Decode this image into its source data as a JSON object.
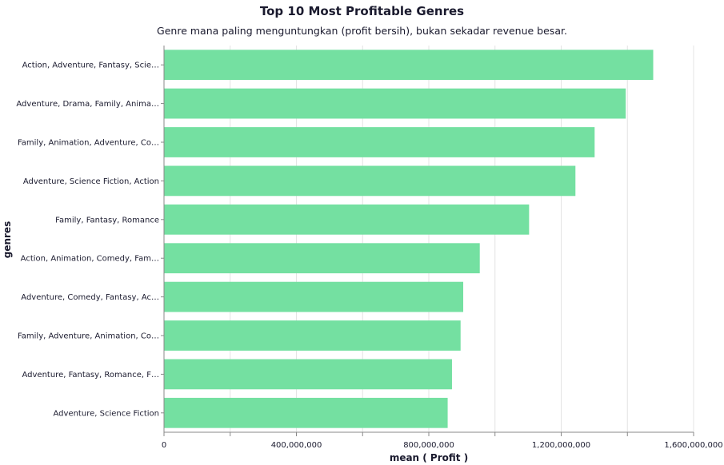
{
  "chart_data": {
    "type": "bar",
    "orientation": "horizontal",
    "title": "Top 10 Most Profitable Genres",
    "subtitle": "Genre mana paling menguntungkan (profit bersih), bukan sekadar revenue besar.",
    "xlabel": "mean ( Profit )",
    "ylabel": "genres",
    "xlim": [
      0,
      1600000000
    ],
    "xticks": [
      "0",
      "400,000,000",
      "800,000,000",
      "1,200,000,000",
      "1,600,000,000"
    ],
    "xtick_values": [
      0,
      400000000,
      800000000,
      1200000000,
      1600000000
    ],
    "grid": true,
    "bar_color": "#74e0a1",
    "categories": [
      "Action, Adventure, Fantasy, Scie…",
      "Adventure, Drama, Family, Anima…",
      "Family, Animation, Adventure, Co…",
      "Adventure, Science Fiction, Action",
      "Family, Fantasy, Romance",
      "Action, Animation, Comedy, Fam…",
      "Adventure, Comedy, Fantasy, Ac…",
      "Family, Adventure, Animation, Co…",
      "Adventure, Fantasy, Romance, F…",
      "Adventure, Science Fiction"
    ],
    "values": [
      1478000000,
      1395000000,
      1301000000,
      1243000000,
      1103000000,
      954000000,
      904000000,
      896000000,
      870000000,
      857000000
    ]
  }
}
